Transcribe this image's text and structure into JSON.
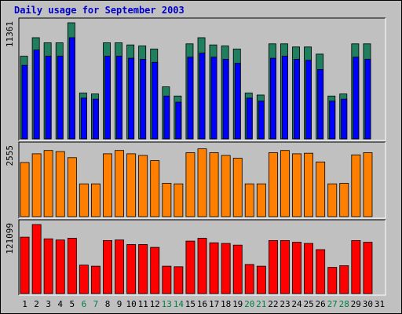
{
  "chart_data": {
    "type": "bar",
    "title": "Daily usage for September 2003",
    "categories": [
      "1",
      "2",
      "3",
      "4",
      "5",
      "6",
      "7",
      "8",
      "9",
      "10",
      "11",
      "12",
      "13",
      "14",
      "15",
      "16",
      "17",
      "18",
      "19",
      "20",
      "21",
      "22",
      "23",
      "24",
      "25",
      "26",
      "27",
      "28",
      "29",
      "30",
      "31"
    ],
    "weekend_days": [
      "6",
      "7",
      "13",
      "14",
      "20",
      "21",
      "27",
      "28"
    ],
    "panels": [
      {
        "label": "11361",
        "ymax": 11361,
        "series": [
          {
            "color": "#1f7f5f",
            "values": [
              8100,
              9900,
              9400,
              9400,
              11361,
              4500,
              4400,
              9400,
              9400,
              9200,
              9100,
              8800,
              5100,
              4200,
              9300,
              9900,
              9200,
              9100,
              8800,
              4500,
              4300,
              9300,
              9300,
              9000,
              9000,
              8300,
              4200,
              4400,
              9300,
              9300,
              0
            ]
          },
          {
            "color": "#0000ff",
            "values": [
              7200,
              8700,
              8100,
              8100,
              9900,
              4000,
              3900,
              8100,
              8100,
              7900,
              7800,
              7500,
              4200,
              3600,
              8000,
              8400,
              8000,
              7800,
              7400,
              4000,
              3700,
              7900,
              8100,
              7800,
              7700,
              6800,
              3700,
              3900,
              8000,
              7800,
              0
            ]
          }
        ]
      },
      {
        "label": "2555",
        "ymax": 2555,
        "series": [
          {
            "color": "#ff8000",
            "values": [
              1980,
              2300,
              2420,
              2380,
              2160,
              1200,
              1200,
              2300,
              2420,
              2300,
              2240,
              2050,
              1220,
              1200,
              2340,
              2480,
              2340,
              2240,
              2140,
              1200,
              1200,
              2340,
              2420,
              2300,
              2320,
              2000,
              1200,
              1220,
              2260,
              2340,
              0
            ]
          }
        ]
      },
      {
        "label": "121099",
        "ymax": 121099,
        "series": [
          {
            "color": "#ff0000",
            "values": [
              99000,
              121099,
              96000,
              94000,
              97000,
              50000,
              48000,
              93000,
              94000,
              86000,
              86000,
              81000,
              48000,
              47000,
              92000,
              97000,
              89000,
              88000,
              85000,
              51000,
              48000,
              93000,
              93000,
              90000,
              88000,
              77000,
              46000,
              49000,
              93000,
              90000,
              0
            ]
          }
        ]
      }
    ],
    "xtick_color_weekday": "#000000",
    "xtick_color_weekend": "#008040"
  }
}
